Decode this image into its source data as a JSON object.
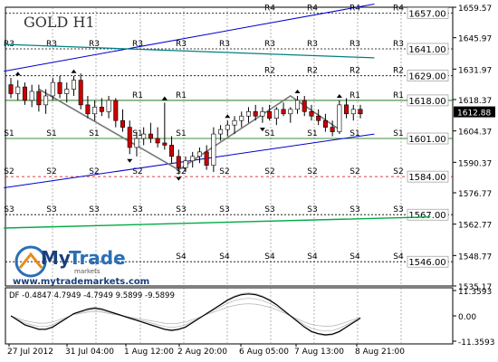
{
  "chart_data": {
    "type": "line",
    "title": "GOLD H1",
    "watermark": {
      "brand_my": "My",
      "brand_trade": "Trade",
      "brand_sub": "markets",
      "url": "www.mytrademarkets.com"
    },
    "price_ticks": [
      "1659.57",
      "1645.97",
      "1631.97",
      "1618.37",
      "1604.37",
      "1590.37",
      "1576.77",
      "1562.77",
      "1548.77",
      "1535.17"
    ],
    "ylim": [
      1535.17,
      1659.57
    ],
    "current_price": "1612.88",
    "time_ticks": [
      "27 Jul 2012",
      "31 Jul 04:00",
      "1 Aug 12:00",
      "2 Aug 20:00",
      "6 Aug 05:00",
      "7 Aug 13:00",
      "8 Aug 21:00"
    ],
    "levels": [
      {
        "value": 1657.0,
        "label": "1657.00"
      },
      {
        "value": 1641.0,
        "label": "1641.00"
      },
      {
        "value": 1629.0,
        "label": "1629.00"
      },
      {
        "value": 1618.0,
        "label": "1618.00"
      },
      {
        "value": 1601.0,
        "label": "1601.00"
      },
      {
        "value": 1584.0,
        "label": "1584.00"
      },
      {
        "value": 1567.0,
        "label": "1567.00"
      },
      {
        "value": 1546.0,
        "label": "1546.00"
      }
    ],
    "pivot_tags": [
      "R4",
      "R3",
      "R2",
      "R1",
      "S1",
      "S2",
      "S3",
      "S4"
    ],
    "price_series": [
      {
        "t": 0,
        "o": 1625,
        "h": 1628,
        "l": 1619,
        "c": 1621
      },
      {
        "t": 1,
        "o": 1621,
        "h": 1627,
        "l": 1618,
        "c": 1624
      },
      {
        "t": 2,
        "o": 1624,
        "h": 1626,
        "l": 1616,
        "c": 1618
      },
      {
        "t": 3,
        "o": 1618,
        "h": 1625,
        "l": 1615,
        "c": 1622
      },
      {
        "t": 4,
        "o": 1622,
        "h": 1625,
        "l": 1613,
        "c": 1616
      },
      {
        "t": 5,
        "o": 1616,
        "h": 1623,
        "l": 1612,
        "c": 1620
      },
      {
        "t": 6,
        "o": 1620,
        "h": 1628,
        "l": 1618,
        "c": 1626
      },
      {
        "t": 7,
        "o": 1626,
        "h": 1629,
        "l": 1619,
        "c": 1621
      },
      {
        "t": 8,
        "o": 1621,
        "h": 1626,
        "l": 1617,
        "c": 1623
      },
      {
        "t": 9,
        "o": 1623,
        "h": 1629,
        "l": 1620,
        "c": 1627
      },
      {
        "t": 10,
        "o": 1627,
        "h": 1630,
        "l": 1614,
        "c": 1616
      },
      {
        "t": 11,
        "o": 1616,
        "h": 1620,
        "l": 1610,
        "c": 1612
      },
      {
        "t": 12,
        "o": 1612,
        "h": 1618,
        "l": 1609,
        "c": 1615
      },
      {
        "t": 13,
        "o": 1615,
        "h": 1619,
        "l": 1611,
        "c": 1613
      },
      {
        "t": 14,
        "o": 1613,
        "h": 1620,
        "l": 1610,
        "c": 1618
      },
      {
        "t": 15,
        "o": 1618,
        "h": 1619,
        "l": 1606,
        "c": 1609
      },
      {
        "t": 16,
        "o": 1609,
        "h": 1614,
        "l": 1604,
        "c": 1606
      },
      {
        "t": 17,
        "o": 1606,
        "h": 1609,
        "l": 1594,
        "c": 1597
      },
      {
        "t": 18,
        "o": 1597,
        "h": 1604,
        "l": 1593,
        "c": 1601
      },
      {
        "t": 19,
        "o": 1601,
        "h": 1606,
        "l": 1598,
        "c": 1603
      },
      {
        "t": 20,
        "o": 1603,
        "h": 1608,
        "l": 1599,
        "c": 1601
      },
      {
        "t": 21,
        "o": 1601,
        "h": 1606,
        "l": 1597,
        "c": 1599
      },
      {
        "t": 22,
        "o": 1599,
        "h": 1617,
        "l": 1596,
        "c": 1598
      },
      {
        "t": 23,
        "o": 1598,
        "h": 1602,
        "l": 1590,
        "c": 1593
      },
      {
        "t": 24,
        "o": 1593,
        "h": 1596,
        "l": 1585,
        "c": 1588
      },
      {
        "t": 25,
        "o": 1588,
        "h": 1593,
        "l": 1586,
        "c": 1591
      },
      {
        "t": 26,
        "o": 1591,
        "h": 1595,
        "l": 1588,
        "c": 1593
      },
      {
        "t": 27,
        "o": 1593,
        "h": 1597,
        "l": 1590,
        "c": 1595
      },
      {
        "t": 28,
        "o": 1595,
        "h": 1598,
        "l": 1587,
        "c": 1589
      },
      {
        "t": 29,
        "o": 1589,
        "h": 1606,
        "l": 1586,
        "c": 1603
      },
      {
        "t": 30,
        "o": 1603,
        "h": 1607,
        "l": 1600,
        "c": 1605
      },
      {
        "t": 31,
        "o": 1605,
        "h": 1609,
        "l": 1602,
        "c": 1607
      },
      {
        "t": 32,
        "o": 1607,
        "h": 1611,
        "l": 1603,
        "c": 1609
      },
      {
        "t": 33,
        "o": 1609,
        "h": 1613,
        "l": 1606,
        "c": 1611
      },
      {
        "t": 34,
        "o": 1611,
        "h": 1615,
        "l": 1608,
        "c": 1613
      },
      {
        "t": 35,
        "o": 1613,
        "h": 1616,
        "l": 1609,
        "c": 1611
      },
      {
        "t": 36,
        "o": 1611,
        "h": 1615,
        "l": 1608,
        "c": 1613
      },
      {
        "t": 37,
        "o": 1613,
        "h": 1616,
        "l": 1609,
        "c": 1610
      },
      {
        "t": 38,
        "o": 1610,
        "h": 1615,
        "l": 1607,
        "c": 1614
      },
      {
        "t": 39,
        "o": 1614,
        "h": 1617,
        "l": 1611,
        "c": 1612
      },
      {
        "t": 40,
        "o": 1612,
        "h": 1615,
        "l": 1608,
        "c": 1614
      },
      {
        "t": 41,
        "o": 1614,
        "h": 1620,
        "l": 1612,
        "c": 1618
      },
      {
        "t": 42,
        "o": 1618,
        "h": 1620,
        "l": 1611,
        "c": 1613
      },
      {
        "t": 43,
        "o": 1613,
        "h": 1616,
        "l": 1609,
        "c": 1611
      },
      {
        "t": 44,
        "o": 1611,
        "h": 1614,
        "l": 1607,
        "c": 1609
      },
      {
        "t": 45,
        "o": 1609,
        "h": 1612,
        "l": 1604,
        "c": 1606
      },
      {
        "t": 46,
        "o": 1606,
        "h": 1609,
        "l": 1602,
        "c": 1604
      },
      {
        "t": 47,
        "o": 1604,
        "h": 1618,
        "l": 1603,
        "c": 1616
      },
      {
        "t": 48,
        "o": 1616,
        "h": 1619,
        "l": 1610,
        "c": 1612
      },
      {
        "t": 49,
        "o": 1612,
        "h": 1616,
        "l": 1609,
        "c": 1614
      },
      {
        "t": 50,
        "o": 1614,
        "h": 1616,
        "l": 1610,
        "c": 1612
      }
    ],
    "indicator": {
      "label": "DF -0.4847 4.7949 -4.7949 9.5899 -9.5899",
      "ticks": [
        "11.3593",
        "0.00",
        "-11.3593"
      ],
      "ylim": [
        -11.3593,
        11.3593
      ],
      "main": [
        0,
        -2,
        -4,
        -5,
        -6,
        -6,
        -5,
        -3,
        -1,
        1,
        2,
        3,
        3.5,
        3,
        2,
        1,
        0,
        -1,
        -2,
        -3,
        -4,
        -5,
        -6,
        -6.5,
        -6,
        -5,
        -3,
        -1,
        1,
        3,
        5,
        7,
        8.5,
        9.5,
        9.8,
        9.5,
        8.5,
        7,
        5,
        2.5,
        0,
        -2.5,
        -5,
        -7,
        -8,
        -8.5,
        -8.2,
        -7,
        -5,
        -3,
        -1
      ],
      "bands": [
        4.7949,
        -4.7949,
        9.5899,
        -9.5899
      ]
    }
  }
}
